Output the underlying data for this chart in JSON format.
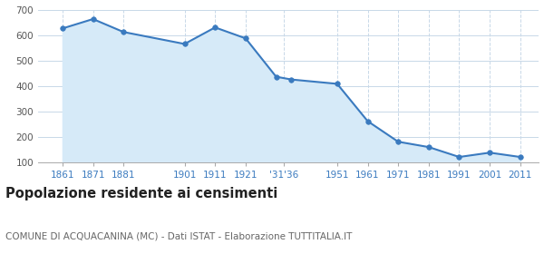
{
  "years": [
    1861,
    1871,
    1881,
    1901,
    1911,
    1921,
    1931,
    1936,
    1951,
    1961,
    1971,
    1981,
    1991,
    2001,
    2011
  ],
  "population": [
    628,
    665,
    614,
    567,
    632,
    589,
    438,
    427,
    410,
    263,
    182,
    161,
    122,
    139,
    122
  ],
  "x_tick_positions": [
    1861,
    1871,
    1881,
    1901,
    1911,
    1921,
    1933.5,
    1951,
    1961,
    1971,
    1981,
    1991,
    2001,
    2011
  ],
  "x_tick_labels": [
    "1861",
    "1871",
    "1881",
    "1901",
    "1911",
    "1921",
    "'31'36",
    "1951",
    "1961",
    "1971",
    "1981",
    "1991",
    "2001",
    "2011"
  ],
  "ylim": [
    100,
    700
  ],
  "yticks": [
    100,
    200,
    300,
    400,
    500,
    600,
    700
  ],
  "xlim_left": 1853,
  "xlim_right": 2017,
  "line_color": "#3a7abf",
  "marker_color": "#3a7abf",
  "fill_color": "#d6eaf8",
  "fill_alpha": 1.0,
  "background_color": "#ffffff",
  "grid_color": "#c8d8e8",
  "title": "Popolazione residente ai censimenti",
  "subtitle": "COMUNE DI ACQUACANINA (MC) - Dati ISTAT - Elaborazione TUTTITALIA.IT",
  "title_fontsize": 10.5,
  "subtitle_fontsize": 7.5,
  "tick_label_color": "#3a7abf",
  "ytick_label_color": "#555555",
  "tick_fontsize": 7.5
}
